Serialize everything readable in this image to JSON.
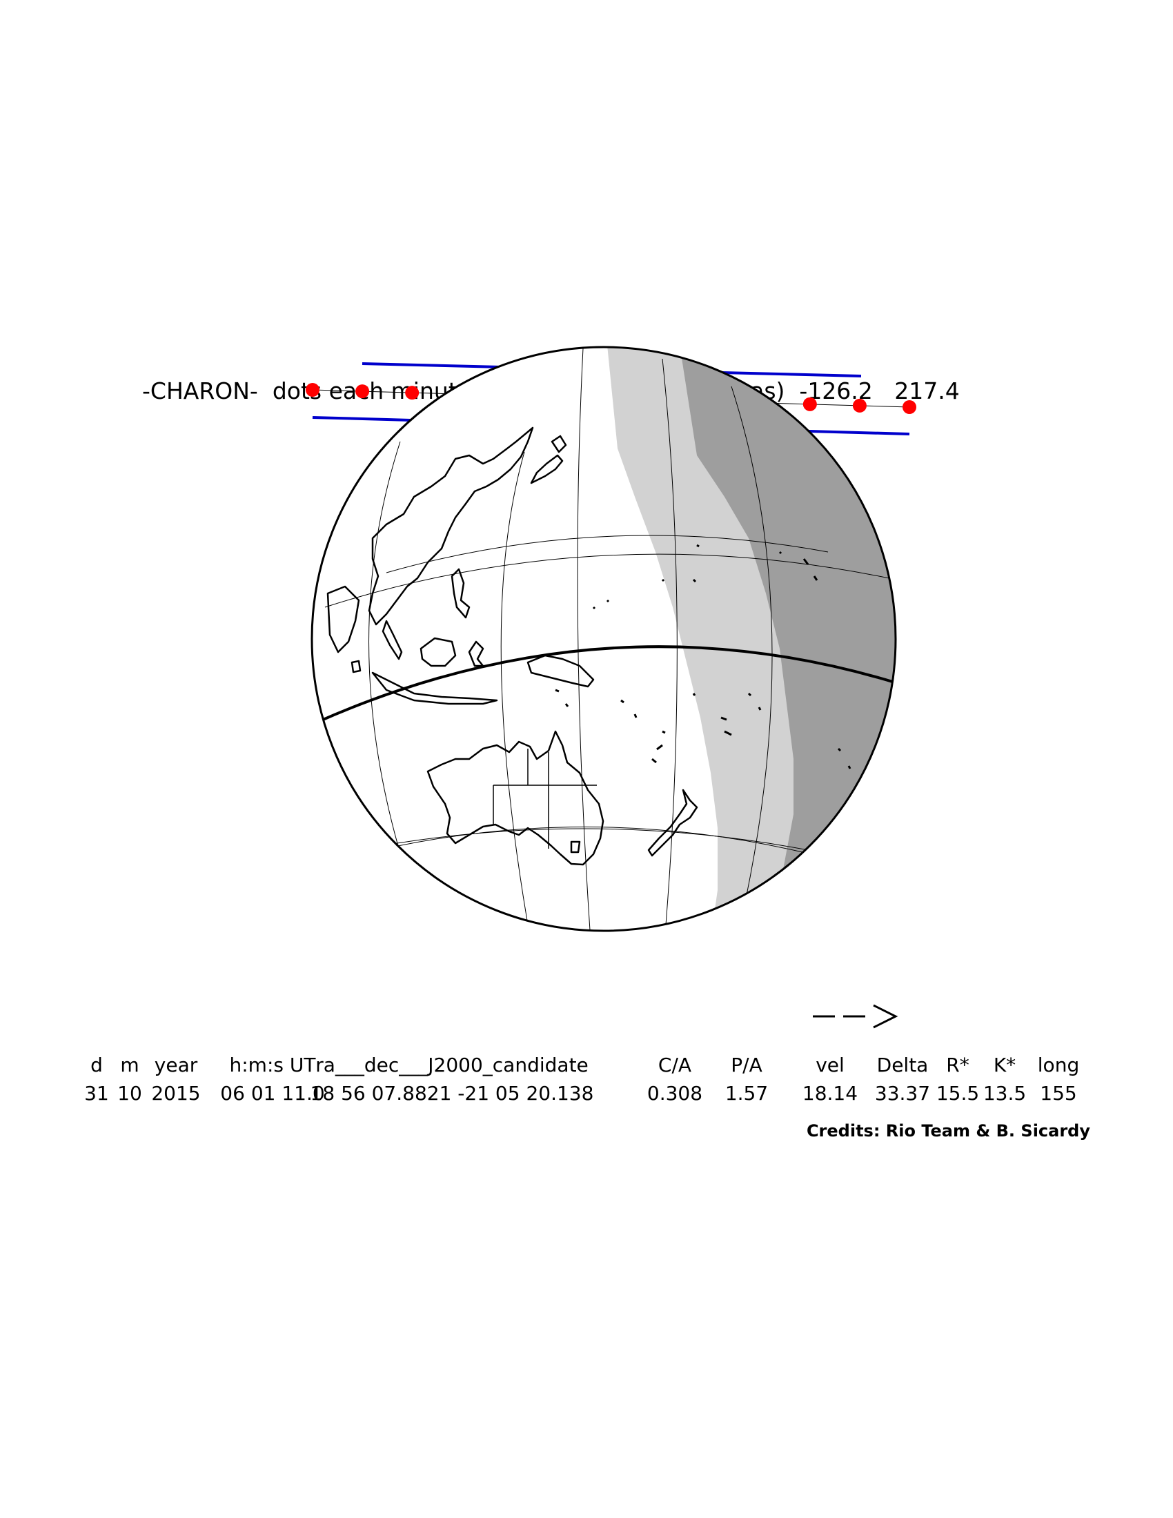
{
  "title": "-CHARON-  dots each minute  -DE413-MB-  offsets (mas)  -126.2   217.4",
  "direction_arrow": "-->",
  "table": {
    "headers": [
      "d",
      "m",
      "year",
      "h:m:s UT",
      "ra___dec___J2000_candidate",
      "C/A",
      "P/A",
      "vel",
      "Delta",
      "R*",
      "K*",
      "long"
    ],
    "values": [
      "31",
      "10",
      "2015",
      "06 01 11.0",
      "18 56 07.8821 -21 05 20.138",
      "0.308",
      "1.57",
      "18.14",
      "33.37",
      "15.5",
      "13.5",
      "155"
    ]
  },
  "credits": "Credits: Rio Team & B. Sicardy",
  "colors": {
    "shadow_limits": "#0000cc",
    "minute_dots": "#ff0000",
    "twilight_light": "#d2d2d2",
    "night_dark": "#9e9e9e"
  }
}
